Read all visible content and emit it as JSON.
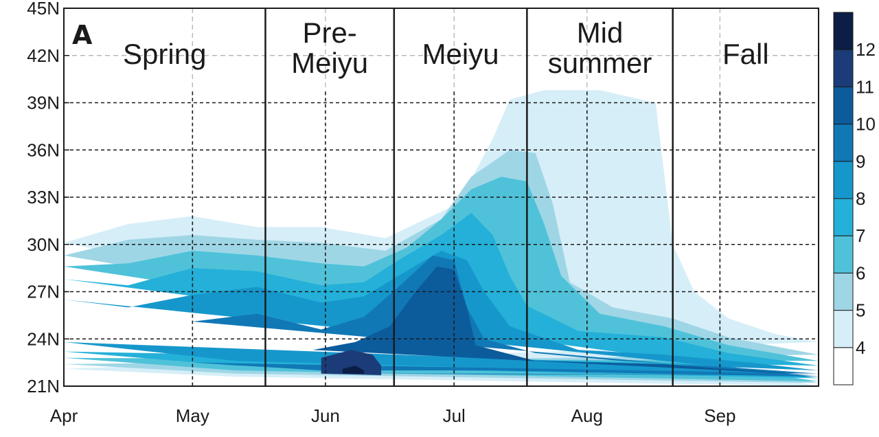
{
  "chart_data": {
    "type": "heatmap",
    "panel_label": "A",
    "x_ticks": [
      "Apr",
      "May",
      "Jun",
      "Jul",
      "Aug",
      "Sep"
    ],
    "y_ticks": [
      "21N",
      "24N",
      "27N",
      "30N",
      "33N",
      "36N",
      "39N",
      "42N",
      "45N"
    ],
    "ylim": [
      21,
      45
    ],
    "xlim_days": [
      0,
      176
    ],
    "grid": true,
    "season_dividers_day": [
      47,
      77,
      108,
      142
    ],
    "seasons": [
      {
        "lines": [
          "Spring"
        ]
      },
      {
        "lines": [
          "Pre-",
          "Meiyu"
        ]
      },
      {
        "lines": [
          "Meiyu"
        ]
      },
      {
        "lines": [
          "Mid",
          "summer"
        ]
      },
      {
        "lines": [
          "Fall"
        ]
      }
    ],
    "colorbar": {
      "labels": [
        "4",
        "5",
        "6",
        "7",
        "8",
        "9",
        "10",
        "11",
        "12"
      ],
      "colors": [
        "#ffffff",
        "#d6eef8",
        "#9fd6e6",
        "#4fc2d9",
        "#24b0d8",
        "#1697cc",
        "#1178b6",
        "#0c5c9c",
        "#1b3c78",
        "#0c1e46"
      ]
    },
    "levels": [
      4,
      5,
      6,
      7,
      8,
      9,
      10,
      11,
      12
    ],
    "bands": [
      {
        "level": 4,
        "color": "#d6eef8",
        "top": [
          [
            0,
            30.1
          ],
          [
            15,
            31.3
          ],
          [
            30,
            31.8
          ],
          [
            45,
            31.1
          ],
          [
            60,
            31.1
          ],
          [
            75,
            30.4
          ],
          [
            92,
            32.6
          ],
          [
            100,
            36.7
          ],
          [
            104,
            39.2
          ],
          [
            112,
            39.8
          ],
          [
            125,
            39.8
          ],
          [
            138,
            39.0
          ],
          [
            142,
            30.0
          ],
          [
            147,
            27.0
          ],
          [
            155,
            25.3
          ],
          [
            166,
            24.3
          ],
          [
            176,
            23.8
          ]
        ],
        "bottom": [
          [
            0,
            22.1
          ],
          [
            40,
            21.6
          ],
          [
            176,
            21.0
          ]
        ]
      },
      {
        "level": 5,
        "color": "#9fd6e6",
        "top": [
          [
            0,
            29.3
          ],
          [
            15,
            30.3
          ],
          [
            30,
            30.6
          ],
          [
            45,
            30.3
          ],
          [
            60,
            30.1
          ],
          [
            75,
            29.6
          ],
          [
            88,
            31.6
          ],
          [
            95,
            34.3
          ],
          [
            104,
            36.0
          ],
          [
            110,
            35.8
          ],
          [
            114,
            32.6
          ],
          [
            118,
            27.6
          ],
          [
            128,
            26.0
          ],
          [
            142,
            25.3
          ],
          [
            155,
            24.1
          ],
          [
            176,
            23.0
          ]
        ],
        "bottom": [
          [
            0,
            22.4
          ],
          [
            40,
            21.8
          ],
          [
            176,
            21.2
          ]
        ]
      },
      {
        "level": 6,
        "color": "#4fc2d9",
        "top": [
          [
            0,
            28.6
          ],
          [
            15,
            28.8
          ],
          [
            30,
            29.6
          ],
          [
            45,
            29.3
          ],
          [
            60,
            28.8
          ],
          [
            70,
            28.6
          ],
          [
            80,
            29.8
          ],
          [
            88,
            31.6
          ],
          [
            95,
            33.5
          ],
          [
            102,
            34.3
          ],
          [
            108,
            34.0
          ],
          [
            112,
            31.3
          ],
          [
            116,
            28.0
          ],
          [
            125,
            25.6
          ],
          [
            140,
            24.8
          ],
          [
            155,
            23.6
          ],
          [
            176,
            22.6
          ]
        ],
        "bottom": [
          [
            0,
            22.8
          ],
          [
            40,
            22.0
          ],
          [
            176,
            21.3
          ]
        ]
      },
      {
        "level": 7,
        "color": "#24b0d8",
        "top": [
          [
            0,
            27.8
          ],
          [
            15,
            27.4
          ],
          [
            30,
            28.5
          ],
          [
            45,
            28.3
          ],
          [
            60,
            27.4
          ],
          [
            70,
            27.6
          ],
          [
            78,
            29.0
          ],
          [
            88,
            30.6
          ],
          [
            95,
            32.0
          ],
          [
            100,
            30.6
          ],
          [
            104,
            28.0
          ],
          [
            108,
            26.1
          ],
          [
            120,
            24.5
          ],
          [
            140,
            24.1
          ],
          [
            155,
            23.1
          ],
          [
            176,
            22.3
          ]
        ],
        "bottom": [
          [
            0,
            23.2
          ],
          [
            40,
            22.3
          ],
          [
            176,
            21.5
          ]
        ]
      },
      {
        "level": 8,
        "color": "#1697cc",
        "top": [
          [
            0,
            26.5
          ],
          [
            15,
            26.0
          ],
          [
            30,
            26.8
          ],
          [
            45,
            27.3
          ],
          [
            60,
            26.3
          ],
          [
            70,
            26.7
          ],
          [
            78,
            28.0
          ],
          [
            88,
            29.6
          ],
          [
            94,
            29.0
          ],
          [
            98,
            27.0
          ],
          [
            104,
            24.8
          ],
          [
            120,
            23.3
          ],
          [
            140,
            23.0
          ],
          [
            160,
            22.5
          ],
          [
            176,
            22.0
          ]
        ],
        "bottom": [
          [
            0,
            23.8
          ],
          [
            40,
            22.6
          ],
          [
            176,
            21.6
          ]
        ]
      },
      {
        "level": 9,
        "color": "#1178b6",
        "top": [
          [
            30,
            25.1
          ],
          [
            45,
            25.6
          ],
          [
            60,
            24.6
          ],
          [
            70,
            25.4
          ],
          [
            78,
            27.3
          ],
          [
            86,
            29.3
          ],
          [
            91,
            29.0
          ],
          [
            94,
            26.0
          ],
          [
            98,
            24.0
          ],
          [
            110,
            23.1
          ],
          [
            130,
            22.6
          ],
          [
            150,
            22.3
          ],
          [
            176,
            21.8
          ]
        ],
        "bottom": [
          [
            30,
            22.5
          ],
          [
            60,
            22.0
          ],
          [
            100,
            22.0
          ],
          [
            176,
            21.6
          ]
        ]
      },
      {
        "level": 10,
        "color": "#0c5c9c",
        "top": [
          [
            58,
            23.3
          ],
          [
            68,
            23.8
          ],
          [
            76,
            24.8
          ],
          [
            82,
            27.0
          ],
          [
            87,
            28.6
          ],
          [
            91,
            28.4
          ],
          [
            94,
            26.0
          ],
          [
            96,
            23.6
          ],
          [
            110,
            22.6
          ],
          [
            140,
            22.4
          ],
          [
            160,
            22.0
          ],
          [
            176,
            21.7
          ]
        ],
        "bottom": [
          [
            58,
            21.8
          ],
          [
            100,
            21.8
          ],
          [
            176,
            21.7
          ]
        ]
      },
      {
        "level": 11,
        "color": "#1b3c78",
        "top": [
          [
            60,
            22.8
          ],
          [
            67,
            23.3
          ],
          [
            72,
            23.0
          ],
          [
            74,
            22.3
          ]
        ],
        "bottom": [
          [
            74,
            21.7
          ],
          [
            60,
            21.8
          ]
        ]
      },
      {
        "level": 12,
        "color": "#0c1e46",
        "top": [
          [
            65,
            22.1
          ],
          [
            68,
            22.3
          ],
          [
            70,
            22.0
          ]
        ],
        "bottom": [
          [
            70,
            21.8
          ],
          [
            65,
            21.8
          ]
        ]
      }
    ]
  }
}
